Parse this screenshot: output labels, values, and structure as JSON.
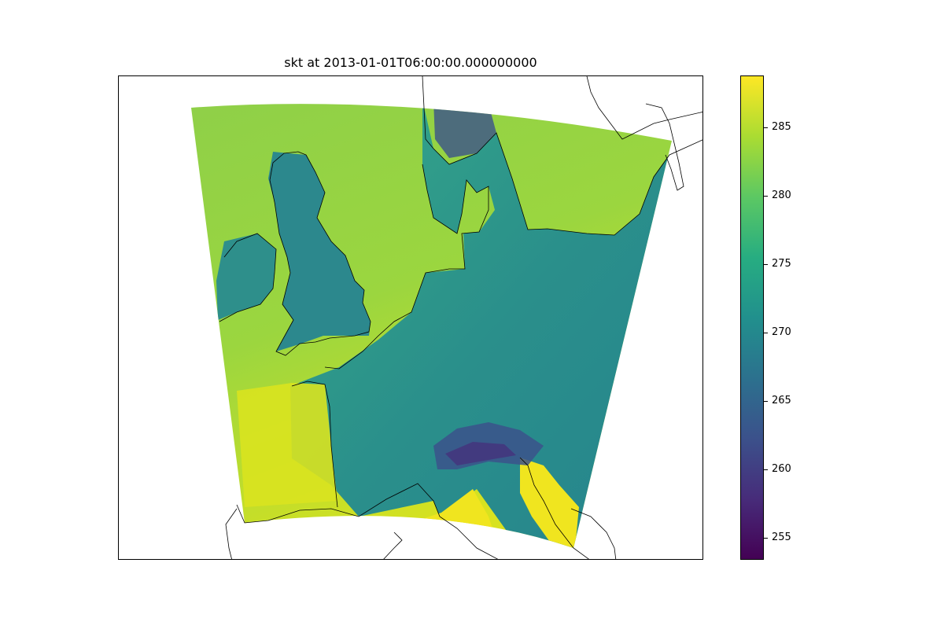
{
  "title": "skt at 2013-01-01T06:00:00.000000000",
  "colorbar": {
    "min": 253.4,
    "max": 288.8,
    "ticks": [
      "255",
      "260",
      "265",
      "270",
      "275",
      "280",
      "285"
    ],
    "colormap": [
      "#440154",
      "#472c7a",
      "#3b518b",
      "#2c718e",
      "#21908d",
      "#27ad81",
      "#5cc863",
      "#aadc32",
      "#fde725"
    ]
  },
  "colors": {
    "sea": "#8fd048",
    "land": "#2a8f8b",
    "coastline": "#000000"
  }
}
